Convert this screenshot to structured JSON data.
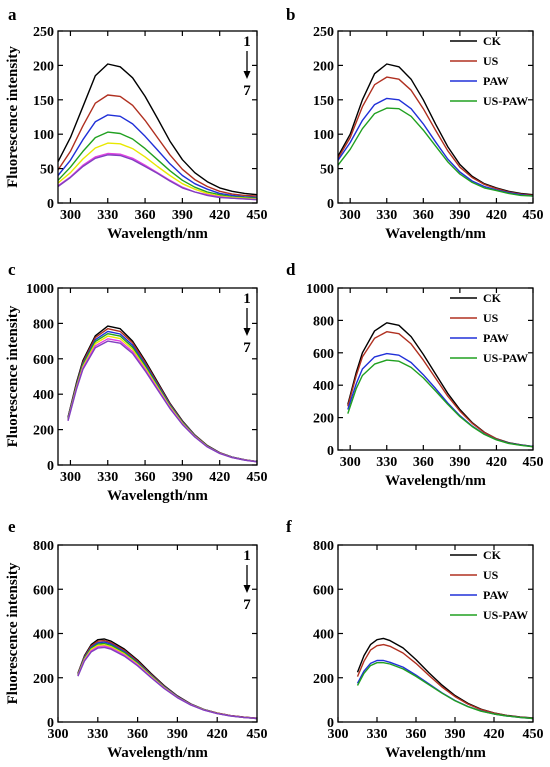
{
  "chart_data": [
    {
      "panel": "a",
      "type": "line",
      "xlabel": "Wavelength/nm",
      "ylabel": "Fluorescence intensity",
      "xlim": [
        290,
        450
      ],
      "ylim": [
        0,
        250
      ],
      "xticks": [
        300,
        330,
        360,
        390,
        420,
        450
      ],
      "yticks": [
        0,
        50,
        100,
        150,
        200,
        250
      ],
      "annotation": {
        "top": "1",
        "bottom": "7"
      },
      "x": [
        290,
        300,
        310,
        320,
        330,
        340,
        350,
        360,
        370,
        380,
        390,
        400,
        410,
        420,
        430,
        440,
        450
      ],
      "series": [
        {
          "color": "#000000",
          "values": [
            60,
            95,
            140,
            185,
            202,
            198,
            182,
            155,
            123,
            90,
            63,
            44,
            31,
            22,
            17,
            14,
            12
          ]
        },
        {
          "color": "#b03020",
          "values": [
            48,
            75,
            112,
            145,
            157,
            155,
            142,
            120,
            95,
            70,
            49,
            34,
            24,
            17,
            13,
            11,
            10
          ]
        },
        {
          "color": "#2030d8",
          "values": [
            40,
            62,
            92,
            118,
            128,
            126,
            115,
            97,
            77,
            57,
            40,
            28,
            20,
            14,
            11,
            9,
            8
          ]
        },
        {
          "color": "#20a020",
          "values": [
            33,
            52,
            75,
            95,
            103,
            101,
            93,
            79,
            63,
            47,
            33,
            23,
            16,
            12,
            9,
            8,
            7
          ]
        },
        {
          "color": "#e8e800",
          "values": [
            29,
            44,
            64,
            80,
            87,
            86,
            79,
            67,
            53,
            40,
            28,
            20,
            14,
            10,
            8,
            7,
            6
          ]
        },
        {
          "color": "#e040e0",
          "values": [
            25,
            38,
            55,
            67,
            72,
            71,
            65,
            55,
            44,
            33,
            23,
            16,
            12,
            9,
            7,
            6,
            5
          ]
        },
        {
          "color": "#8040c0",
          "values": [
            24,
            37,
            53,
            65,
            70,
            69,
            63,
            53,
            43,
            32,
            22,
            16,
            11,
            8,
            7,
            6,
            5
          ]
        }
      ]
    },
    {
      "panel": "b",
      "type": "line",
      "xlabel": "Wavelength/nm",
      "ylabel": "",
      "xlim": [
        290,
        450
      ],
      "ylim": [
        0,
        250
      ],
      "xticks": [
        300,
        330,
        360,
        390,
        420,
        450
      ],
      "yticks": [
        0,
        50,
        100,
        150,
        200,
        250
      ],
      "legend": [
        "CK",
        "US",
        "PAW",
        "US-PAW"
      ],
      "x": [
        290,
        300,
        310,
        320,
        330,
        340,
        350,
        360,
        370,
        380,
        390,
        400,
        410,
        420,
        430,
        440,
        450
      ],
      "series": [
        {
          "name": "CK",
          "color": "#000000",
          "values": [
            68,
            100,
            150,
            188,
            202,
            198,
            180,
            150,
            115,
            82,
            56,
            39,
            28,
            22,
            17,
            14,
            12
          ]
        },
        {
          "name": "US",
          "color": "#b03020",
          "values": [
            65,
            95,
            140,
            172,
            183,
            180,
            164,
            137,
            106,
            76,
            52,
            37,
            27,
            21,
            16,
            13,
            11
          ]
        },
        {
          "name": "PAW",
          "color": "#2030d8",
          "values": [
            62,
            88,
            120,
            143,
            152,
            150,
            137,
            115,
            89,
            64,
            45,
            32,
            24,
            19,
            15,
            12,
            10
          ]
        },
        {
          "name": "US-PAW",
          "color": "#20a020",
          "values": [
            55,
            78,
            108,
            130,
            138,
            137,
            126,
            106,
            83,
            60,
            42,
            30,
            22,
            18,
            14,
            11,
            10
          ]
        }
      ]
    },
    {
      "panel": "c",
      "type": "line",
      "xlabel": "Wavelength/nm",
      "ylabel": "Fluorescence intensity",
      "xlim": [
        290,
        450
      ],
      "ylim": [
        0,
        1000
      ],
      "xticks": [
        300,
        330,
        360,
        390,
        420,
        450
      ],
      "yticks": [
        0,
        200,
        400,
        600,
        800,
        1000
      ],
      "annotation": {
        "top": "1",
        "bottom": "7"
      },
      "x": [
        298,
        305,
        310,
        320,
        330,
        340,
        350,
        360,
        370,
        380,
        390,
        400,
        410,
        420,
        430,
        440,
        450
      ],
      "series": [
        {
          "color": "#000000",
          "values": [
            270,
            470,
            590,
            730,
            785,
            770,
            700,
            590,
            470,
            350,
            250,
            170,
            110,
            70,
            45,
            30,
            20
          ]
        },
        {
          "color": "#b03020",
          "values": [
            265,
            460,
            580,
            720,
            770,
            755,
            690,
            580,
            462,
            345,
            246,
            168,
            108,
            69,
            44,
            29,
            19
          ]
        },
        {
          "color": "#2030d8",
          "values": [
            262,
            455,
            572,
            708,
            755,
            740,
            677,
            570,
            455,
            340,
            243,
            166,
            107,
            68,
            44,
            29,
            19
          ]
        },
        {
          "color": "#20a020",
          "values": [
            258,
            450,
            565,
            698,
            742,
            728,
            665,
            560,
            448,
            335,
            240,
            164,
            106,
            67,
            43,
            28,
            19
          ]
        },
        {
          "color": "#e8e800",
          "values": [
            255,
            444,
            556,
            686,
            728,
            714,
            653,
            550,
            440,
            330,
            236,
            162,
            104,
            66,
            43,
            28,
            18
          ]
        },
        {
          "color": "#e040e0",
          "values": [
            252,
            438,
            548,
            673,
            713,
            700,
            640,
            540,
            432,
            325,
            232,
            160,
            103,
            66,
            42,
            28,
            18
          ]
        },
        {
          "color": "#8040c0",
          "values": [
            250,
            432,
            540,
            662,
            700,
            688,
            630,
            532,
            426,
            320,
            229,
            158,
            102,
            65,
            42,
            27,
            18
          ]
        }
      ]
    },
    {
      "panel": "d",
      "type": "line",
      "xlabel": "Wavelength/nm",
      "ylabel": "",
      "xlim": [
        290,
        450
      ],
      "ylim": [
        0,
        1000
      ],
      "xticks": [
        300,
        330,
        360,
        390,
        420,
        450
      ],
      "yticks": [
        0,
        200,
        400,
        600,
        800,
        1000
      ],
      "legend": [
        "CK",
        "US",
        "PAW",
        "US-PAW"
      ],
      "x": [
        298,
        305,
        310,
        320,
        330,
        340,
        350,
        360,
        370,
        380,
        390,
        400,
        410,
        420,
        430,
        440,
        450
      ],
      "series": [
        {
          "name": "CK",
          "color": "#000000",
          "values": [
            280,
            480,
            600,
            735,
            785,
            770,
            700,
            590,
            470,
            350,
            250,
            170,
            110,
            70,
            45,
            32,
            22
          ]
        },
        {
          "name": "US",
          "color": "#b03020",
          "values": [
            270,
            460,
            575,
            690,
            730,
            718,
            655,
            555,
            444,
            333,
            240,
            165,
            108,
            69,
            44,
            31,
            21
          ]
        },
        {
          "name": "PAW",
          "color": "#2030d8",
          "values": [
            250,
            410,
            500,
            575,
            595,
            585,
            540,
            465,
            380,
            290,
            212,
            148,
            98,
            64,
            42,
            30,
            21
          ]
        },
        {
          "name": "US-PAW",
          "color": "#20a020",
          "values": [
            225,
            380,
            460,
            530,
            555,
            548,
            510,
            445,
            365,
            282,
            206,
            145,
            96,
            63,
            41,
            29,
            20
          ]
        }
      ]
    },
    {
      "panel": "e",
      "type": "line",
      "xlabel": "Wavelength/nm",
      "ylabel": "Fluorescence intensity",
      "xlim": [
        300,
        450
      ],
      "ylim": [
        0,
        800
      ],
      "xticks": [
        300,
        330,
        360,
        390,
        420,
        450
      ],
      "yticks": [
        0,
        200,
        400,
        600,
        800
      ],
      "annotation": {
        "top": "1",
        "bottom": "7"
      },
      "x": [
        315,
        320,
        325,
        330,
        335,
        340,
        350,
        360,
        370,
        380,
        390,
        400,
        410,
        420,
        430,
        440,
        450
      ],
      "series": [
        {
          "color": "#000000",
          "values": [
            220,
            300,
            350,
            372,
            375,
            365,
            330,
            280,
            220,
            165,
            118,
            82,
            57,
            40,
            29,
            22,
            17
          ]
        },
        {
          "color": "#b03020",
          "values": [
            218,
            296,
            344,
            365,
            368,
            358,
            324,
            275,
            216,
            162,
            116,
            81,
            56,
            40,
            29,
            22,
            17
          ]
        },
        {
          "color": "#2030d8",
          "values": [
            215,
            292,
            338,
            358,
            361,
            352,
            318,
            270,
            213,
            160,
            115,
            80,
            56,
            39,
            28,
            21,
            16
          ]
        },
        {
          "color": "#20a020",
          "values": [
            213,
            288,
            333,
            352,
            355,
            346,
            313,
            266,
            210,
            158,
            113,
            79,
            55,
            39,
            28,
            21,
            16
          ]
        },
        {
          "color": "#e8e800",
          "values": [
            211,
            284,
            328,
            346,
            349,
            340,
            308,
            262,
            207,
            156,
            112,
            78,
            55,
            39,
            28,
            21,
            16
          ]
        },
        {
          "color": "#e040e0",
          "values": [
            209,
            280,
            322,
            340,
            343,
            334,
            303,
            258,
            204,
            154,
            111,
            78,
            54,
            38,
            28,
            21,
            16
          ]
        },
        {
          "color": "#8040c0",
          "values": [
            207,
            276,
            317,
            334,
            337,
            329,
            298,
            254,
            201,
            152,
            110,
            77,
            54,
            38,
            27,
            21,
            16
          ]
        }
      ]
    },
    {
      "panel": "f",
      "type": "line",
      "xlabel": "Wavelength/nm",
      "ylabel": "",
      "xlim": [
        300,
        450
      ],
      "ylim": [
        0,
        800
      ],
      "xticks": [
        300,
        330,
        360,
        390,
        420,
        450
      ],
      "yticks": [
        0,
        200,
        400,
        600,
        800
      ],
      "legend": [
        "CK",
        "US",
        "PAW",
        "US-PAW"
      ],
      "x": [
        315,
        320,
        325,
        330,
        335,
        340,
        350,
        360,
        370,
        380,
        390,
        400,
        410,
        420,
        430,
        440,
        450
      ],
      "series": [
        {
          "name": "CK",
          "color": "#000000",
          "values": [
            225,
            300,
            350,
            372,
            378,
            368,
            335,
            282,
            222,
            167,
            120,
            84,
            58,
            41,
            30,
            23,
            18
          ]
        },
        {
          "name": "US",
          "color": "#b03020",
          "values": [
            205,
            275,
            325,
            345,
            350,
            342,
            312,
            265,
            210,
            158,
            115,
            81,
            56,
            40,
            29,
            22,
            17
          ]
        },
        {
          "name": "PAW",
          "color": "#2030d8",
          "values": [
            175,
            230,
            265,
            278,
            278,
            270,
            248,
            212,
            172,
            132,
            97,
            70,
            50,
            36,
            27,
            21,
            16
          ]
        },
        {
          "name": "US-PAW",
          "color": "#20a020",
          "values": [
            165,
            220,
            255,
            268,
            268,
            262,
            240,
            206,
            168,
            130,
            96,
            69,
            49,
            36,
            27,
            21,
            16
          ]
        }
      ]
    }
  ]
}
